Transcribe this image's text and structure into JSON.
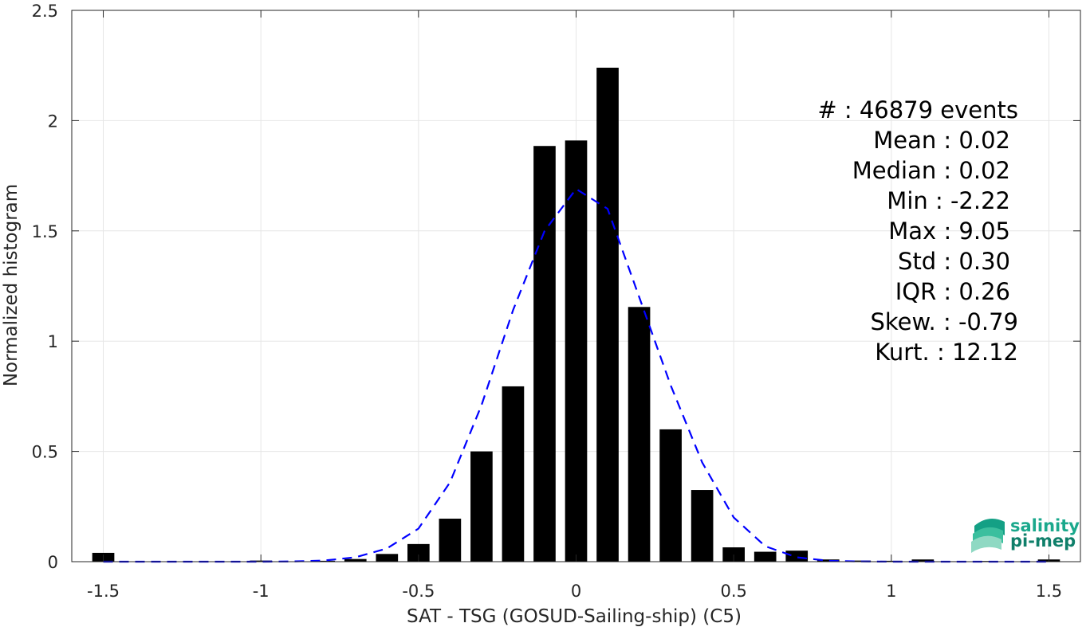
{
  "chart_data": {
    "type": "bar",
    "xlabel": "SAT - TSG (GOSUD-Sailing-ship) (C5)",
    "ylabel": "Normalized histogram",
    "xlim": [
      -1.6,
      1.6
    ],
    "ylim": [
      0,
      2.5
    ],
    "grid": true,
    "x_ticks": [
      -1.5,
      -1,
      -0.5,
      0,
      0.5,
      1,
      1.5
    ],
    "x_tick_labels": [
      "-1.5",
      "-1",
      "-0.5",
      "0",
      "0.5",
      "1",
      "1.5"
    ],
    "y_ticks": [
      0,
      0.5,
      1,
      1.5,
      2,
      2.5
    ],
    "y_tick_labels": [
      "0",
      "0.5",
      "1",
      "1.5",
      "2",
      "2.5"
    ],
    "bar_width": 0.07,
    "bar_color": "#000000",
    "bars": {
      "x": [
        -1.5,
        -1.4,
        -1.3,
        -1.2,
        -1.1,
        -1.0,
        -0.9,
        -0.8,
        -0.7,
        -0.6,
        -0.5,
        -0.4,
        -0.3,
        -0.2,
        -0.1,
        0.0,
        0.1,
        0.2,
        0.3,
        0.4,
        0.5,
        0.6,
        0.7,
        0.8,
        0.9,
        1.0,
        1.1,
        1.2,
        1.3,
        1.4,
        1.5
      ],
      "values": [
        0.04,
        0.0,
        0.0,
        0.0,
        0.0,
        0.005,
        0.0,
        0.004,
        0.012,
        0.035,
        0.08,
        0.195,
        0.5,
        0.795,
        1.885,
        1.91,
        2.24,
        1.155,
        0.6,
        0.325,
        0.065,
        0.045,
        0.05,
        0.01,
        0.005,
        0.004,
        0.01,
        0.002,
        0.003,
        0.0,
        0.01
      ]
    },
    "fit": {
      "name": "",
      "style": "dashed",
      "color": "#0000ff",
      "x": [
        -1.5,
        -1.4,
        -1.3,
        -1.2,
        -1.1,
        -1.0,
        -0.9,
        -0.8,
        -0.7,
        -0.6,
        -0.5,
        -0.4,
        -0.3,
        -0.2,
        -0.1,
        0.0,
        0.1,
        0.2,
        0.3,
        0.4,
        0.5,
        0.6,
        0.7,
        0.8,
        0.9,
        1.0,
        1.1,
        1.2,
        1.3,
        1.4,
        1.5
      ],
      "values": [
        0.0,
        0.0,
        0.0,
        0.0,
        0.0,
        0.0,
        0.001,
        0.005,
        0.02,
        0.06,
        0.15,
        0.36,
        0.71,
        1.14,
        1.5,
        1.69,
        1.6,
        1.2,
        0.8,
        0.45,
        0.2,
        0.07,
        0.02,
        0.004,
        0.001,
        0.0,
        0.0,
        0.0,
        0.0,
        0.0,
        0.0
      ]
    },
    "stats": [
      "#  : 46879 events",
      "Mean : 0.02",
      "Median : 0.02",
      "Min : -2.22",
      "Max : 9.05",
      "Std : 0.30",
      "IQR : 0.26",
      "Skew. : -0.79",
      "Kurt. : 12.12"
    ]
  },
  "logo": {
    "line1": "salinity",
    "line2": "pi-mep",
    "color": "#1aa88c",
    "icon": "wave-layers-icon"
  }
}
